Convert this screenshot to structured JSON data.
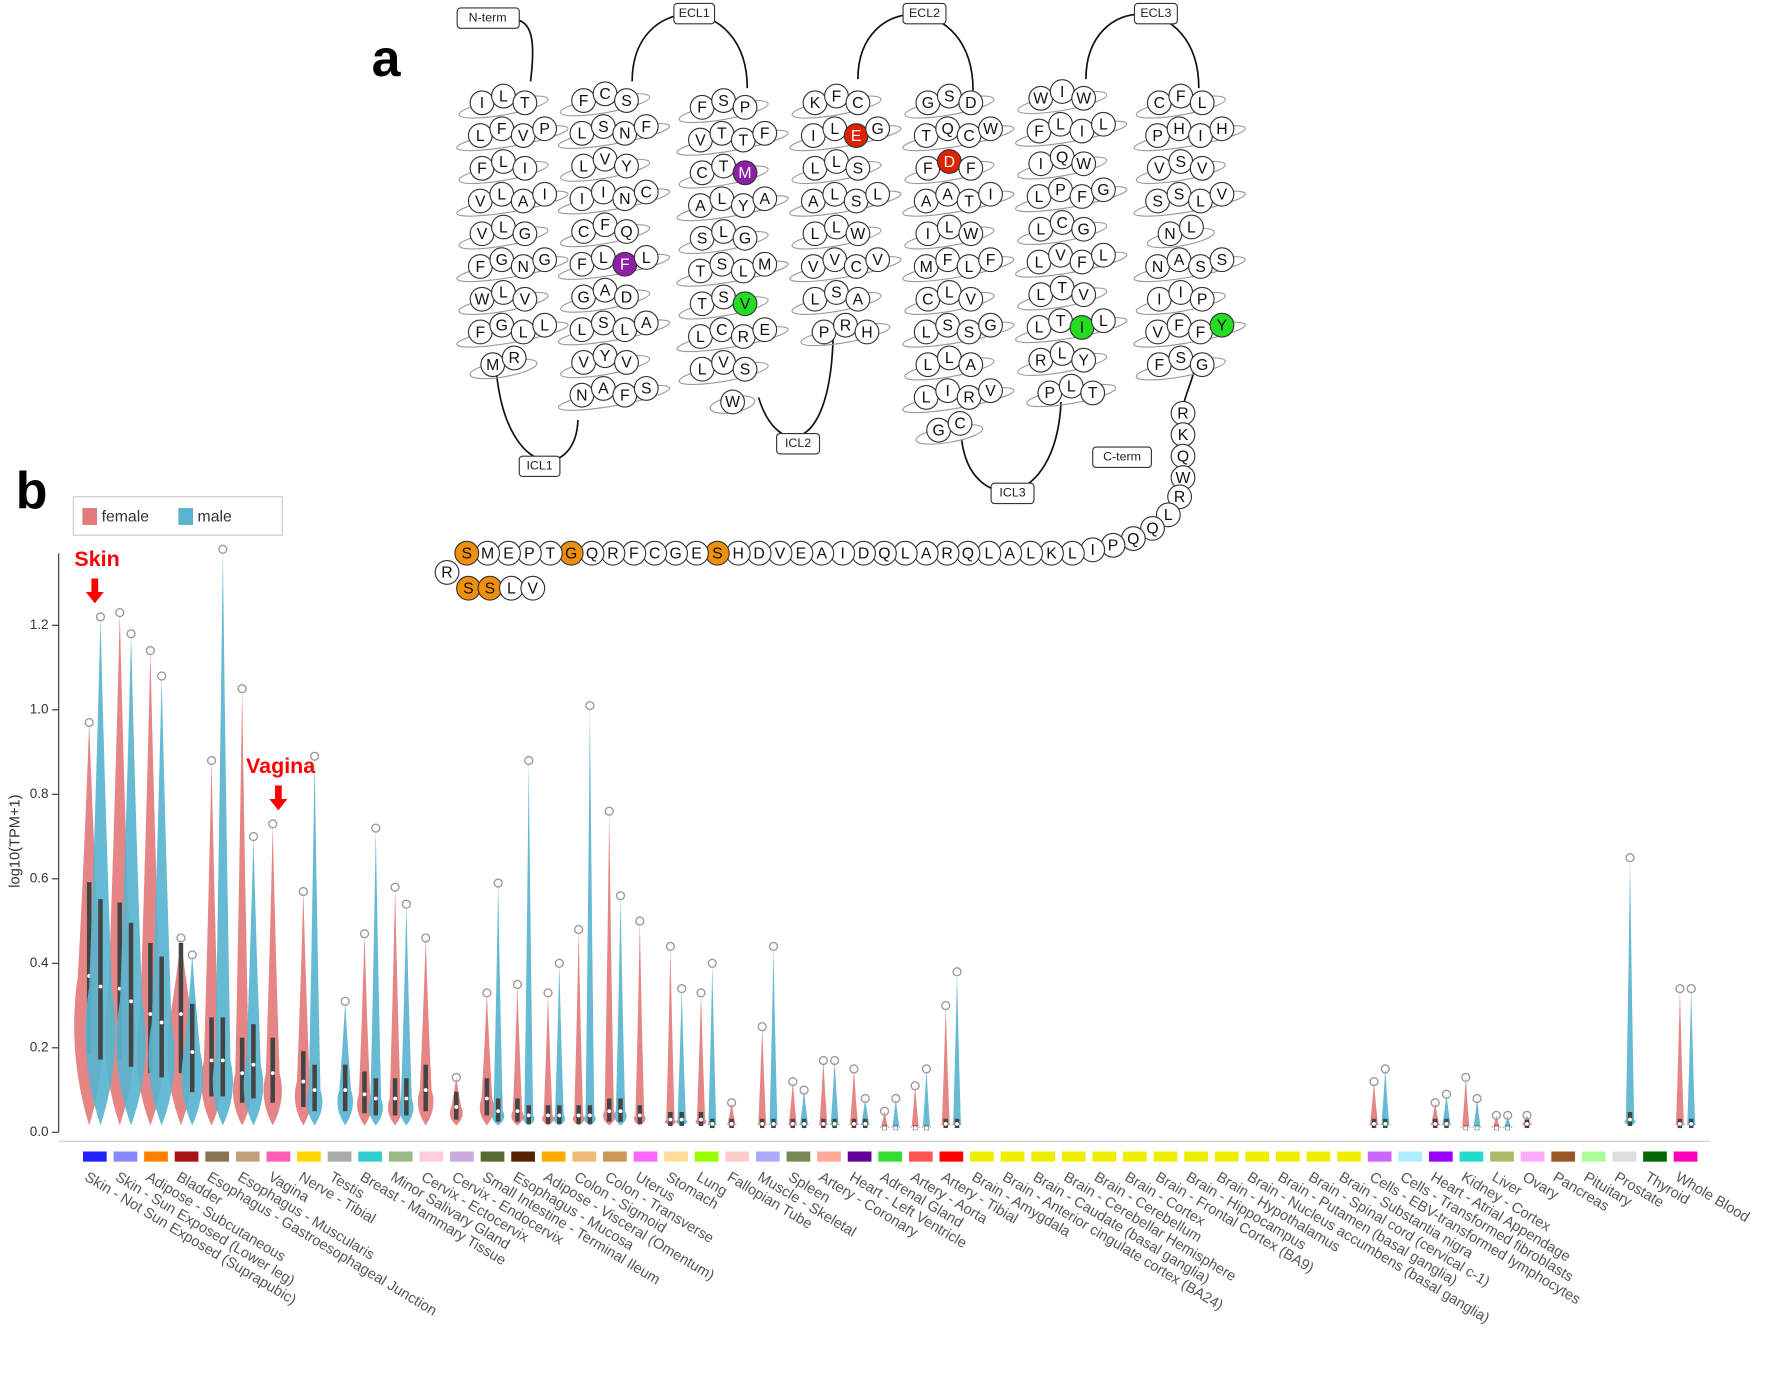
{
  "panel_a": {
    "label": "a",
    "loops": [
      "N-term",
      "ECL1",
      "ECL2",
      "ECL3",
      "ICL1",
      "ICL2",
      "ICL3",
      "C-term"
    ],
    "helices": [
      [
        "ILT",
        "LFVP",
        "FLI",
        "VLAI",
        "VLG",
        "FGNG",
        "WLV",
        "FGLL",
        "MR"
      ],
      [
        "FCS",
        "LSNF",
        "LVY",
        "IINC",
        "CFQ",
        "FLFL",
        "GAD",
        "LSLA",
        "VYV",
        "NAFS"
      ],
      [
        "FSP",
        "VTTF",
        "CTM",
        "ALYA",
        "SLG",
        "TSLM",
        "TSV",
        "LCRE",
        "LVS",
        "W"
      ],
      [
        "KFC",
        "ILEG",
        "LLS",
        "ALSL",
        "LLW",
        "VVCV",
        "LSA",
        "PRH"
      ],
      [
        "GSD",
        "TQCW",
        "FDF",
        "AATI",
        "ILW",
        "MFLF",
        "CLV",
        "LSSG",
        "LLA",
        "LIRV",
        "GC"
      ],
      [
        "WIW",
        "FLIL",
        "IQW",
        "LPFG",
        "LCG",
        "LVFL",
        "LTV",
        "LTIL",
        "RLY",
        "PLT"
      ],
      [
        "CFL",
        "PHIH",
        "VSV",
        "SSLV",
        "NL",
        "NASS",
        "IIP",
        "VFFY",
        "FSG"
      ]
    ],
    "highlights": [
      {
        "helix": 1,
        "row": 5,
        "col": 2,
        "color": "#8e1fa6"
      },
      {
        "helix": 2,
        "row": 2,
        "col": 2,
        "color": "#8e1fa6"
      },
      {
        "helix": 2,
        "row": 6,
        "col": 2,
        "color": "#22dd22"
      },
      {
        "helix": 3,
        "row": 1,
        "col": 2,
        "color": "#dd2200"
      },
      {
        "helix": 4,
        "row": 2,
        "col": 1,
        "color": "#dd2200"
      },
      {
        "helix": 5,
        "row": 7,
        "col": 2,
        "color": "#22dd22"
      },
      {
        "helix": 6,
        "row": 7,
        "col": 3,
        "color": "#22dd22"
      }
    ],
    "tail": "RKQWRLQQPILKLALQRALQDIAEVDHSEGCFRQGTPEMSRSSLV",
    "tail_highlights": [
      27,
      34,
      39,
      41,
      42
    ],
    "tail_color": "#f0900a"
  },
  "chart_data": {
    "type": "violin",
    "label": "b",
    "ylabel": "log10(TPM+1)",
    "ylim": [
      0,
      1.4
    ],
    "yticks": [
      {
        "value": 0,
        "label": "0.0"
      },
      0.2,
      0.4,
      0.6,
      0.8,
      {
        "value": 1,
        "label": "1.0"
      },
      1.2
    ],
    "legend_position": "upper left",
    "annotations": [
      {
        "text": "Skin",
        "category": 0
      },
      {
        "text": "Vagina",
        "category": 6
      }
    ],
    "categories": [
      "Skin - Not Sun Exposed (Suprapubic)",
      "Skin - Sun Exposed (Lower leg)",
      "Adipose - Subcutaneous",
      "Bladder",
      "Esophagus - Gastroesophageal Junction",
      "Esophagus - Muscularis",
      "Vagina",
      "Nerve - Tibial",
      "Testis",
      "Breast - Mammary Tissue",
      "Minor Salivary Gland",
      "Cervix - Ectocervix",
      "Cervix - Endocervix",
      "Small Intestine - Terminal Ileum",
      "Esophagus - Mucosa",
      "Adipose - Visceral (Omentum)",
      "Colon - Sigmoid",
      "Colon - Transverse",
      "Uterus",
      "Stomach",
      "Lung",
      "Fallopian Tube",
      "Muscle - Skeletal",
      "Spleen",
      "Artery - Coronary",
      "Heart - Left Ventricle",
      "Adrenal Gland",
      "Artery - Aorta",
      "Artery - Tibial",
      "Brain - Amygdala",
      "Brain - Anterior cingulate cortex (BA24)",
      "Brain - Caudate (basal ganglia)",
      "Brain - Cerebellar Hemisphere",
      "Brain - Cerebellum",
      "Brain - Cortex",
      "Brain - Frontal Cortex (BA9)",
      "Brain - Hippocampus",
      "Brain - Hypothalamus",
      "Brain - Nucleus accumbens (basal ganglia)",
      "Brain - Putamen (basal ganglia)",
      "Brain - Spinal cord (cervical c-1)",
      "Brain - Substantia nigra",
      "Cells - EBV-transformed lymphocytes",
      "Cells - Transformed fibroblasts",
      "Heart - Atrial Appendage",
      "Kidney - Cortex",
      "Liver",
      "Ovary",
      "Pancreas",
      "Pituitary",
      "Prostate",
      "Thyroid",
      "Whole Blood"
    ],
    "category_colors": [
      "#2222ff",
      "#8888ff",
      "#ff7f00",
      "#aa1111",
      "#8b7355",
      "#c4a07a",
      "#ff5cb5",
      "#ffd700",
      "#aaaaaa",
      "#33cccc",
      "#99bb88",
      "#ffccdd",
      "#ccaadd",
      "#556b2f",
      "#552200",
      "#ffaa00",
      "#eebb77",
      "#cc9955",
      "#ff66ff",
      "#ffdd99",
      "#99ff00",
      "#ffcccc",
      "#aaaaff",
      "#778855",
      "#ffaa99",
      "#660099",
      "#33dd33",
      "#ff5555",
      "#ff0000",
      "#eeee00",
      "#eeee00",
      "#eeee00",
      "#eeee00",
      "#eeee00",
      "#eeee00",
      "#eeee00",
      "#eeee00",
      "#eeee00",
      "#eeee00",
      "#eeee00",
      "#eeee00",
      "#eeee00",
      "#cc66ff",
      "#aaeeff",
      "#9900ff",
      "#22ddcc",
      "#aabb66",
      "#ffaaff",
      "#995522",
      "#aaff99",
      "#dddddd",
      "#006600",
      "#ff00bb"
    ],
    "series": [
      {
        "name": "female",
        "color": "#e47b7b",
        "values": [
          0.37,
          0.34,
          0.28,
          0.28,
          0.17,
          0.14,
          0.14,
          0.12,
          null,
          0.09,
          0.08,
          0.1,
          0.06,
          0.08,
          0.05,
          0.04,
          0.04,
          0.05,
          0.04,
          0.03,
          0.03,
          0.02,
          0.02,
          0.02,
          0.02,
          0.02,
          0.01,
          0.01,
          0.02,
          null,
          null,
          null,
          null,
          null,
          null,
          null,
          null,
          null,
          null,
          null,
          null,
          null,
          0.02,
          null,
          0.02,
          0.01,
          0.01,
          0.02,
          null,
          null,
          null,
          null,
          0.02
        ],
        "max": [
          0.97,
          1.23,
          1.14,
          0.46,
          0.88,
          1.05,
          0.73,
          0.57,
          null,
          0.47,
          0.58,
          0.46,
          0.13,
          0.33,
          0.35,
          0.33,
          0.48,
          0.76,
          0.5,
          0.44,
          0.33,
          0.07,
          0.25,
          0.12,
          0.17,
          0.15,
          0.05,
          0.11,
          0.3,
          null,
          null,
          null,
          null,
          null,
          null,
          null,
          null,
          null,
          null,
          null,
          null,
          null,
          0.12,
          null,
          0.07,
          0.13,
          0.04,
          0.04,
          null,
          null,
          null,
          null,
          0.34
        ]
      },
      {
        "name": "male",
        "color": "#5ab4cf",
        "values": [
          0.345,
          0.31,
          0.26,
          0.19,
          0.17,
          0.16,
          null,
          0.1,
          0.1,
          0.08,
          0.08,
          null,
          null,
          0.05,
          0.04,
          0.04,
          0.04,
          0.05,
          null,
          0.03,
          0.02,
          null,
          0.02,
          0.02,
          0.02,
          0.02,
          0.01,
          0.01,
          0.02,
          null,
          null,
          null,
          null,
          null,
          null,
          null,
          null,
          null,
          null,
          null,
          null,
          null,
          0.02,
          null,
          0.02,
          0.01,
          0.01,
          null,
          null,
          null,
          0.03,
          null,
          0.02
        ],
        "max": [
          1.22,
          1.18,
          1.08,
          0.42,
          1.38,
          0.7,
          null,
          0.89,
          0.31,
          0.72,
          0.54,
          null,
          null,
          0.59,
          0.88,
          0.4,
          1.01,
          0.56,
          null,
          0.34,
          0.4,
          null,
          0.44,
          0.1,
          0.17,
          0.08,
          0.08,
          0.15,
          0.38,
          null,
          null,
          null,
          null,
          null,
          null,
          null,
          null,
          null,
          null,
          null,
          null,
          null,
          0.15,
          null,
          0.09,
          0.08,
          0.04,
          null,
          null,
          null,
          0.65,
          null,
          0.34
        ]
      }
    ]
  }
}
